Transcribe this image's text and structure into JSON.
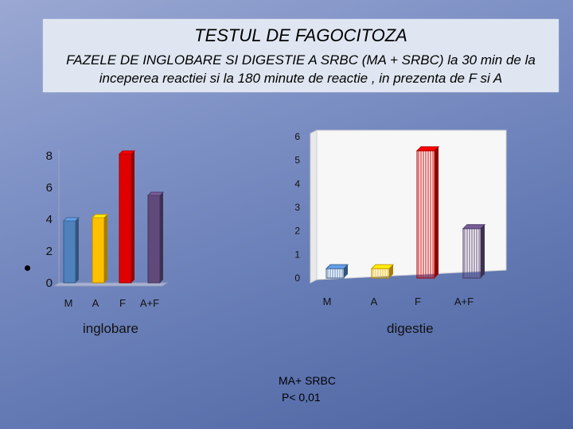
{
  "slide": {
    "title": "TESTUL  DE  FAGOCITOZA",
    "subtitle": "FAZELE  DE  INGLOBARE  SI DIGESTIE A SRBC (MA + SRBC) la 30 min de la inceperea reactiei si la 180 minute  de reactie , in prezenta de F si A",
    "note_line1": "MA+  SRBC",
    "note_line2": "P< 0,01"
  },
  "colors": {
    "M": "#4f81bd",
    "A": "#ffc000",
    "F": "#e00000",
    "A+F": "#604a7b"
  },
  "chart_data": [
    {
      "type": "bar",
      "title": "",
      "xlabel": "inglobare",
      "ylabel": "",
      "categories": [
        "M",
        "A",
        "F",
        "A+F"
      ],
      "values": [
        3.9,
        4.1,
        8.1,
        5.5
      ],
      "ylim": [
        0,
        8
      ],
      "yticks": [
        "0",
        "2",
        "4",
        "6",
        "8"
      ],
      "grid": false
    },
    {
      "type": "bar",
      "title": "",
      "xlabel": "digestie",
      "ylabel": "",
      "categories": [
        "M",
        "A",
        "F",
        "A+F"
      ],
      "values": [
        0.4,
        0.4,
        5.4,
        2.1
      ],
      "ylim": [
        0,
        6
      ],
      "yticks": [
        "0",
        "1",
        "2",
        "3",
        "4",
        "5",
        "6"
      ],
      "grid": false
    }
  ]
}
